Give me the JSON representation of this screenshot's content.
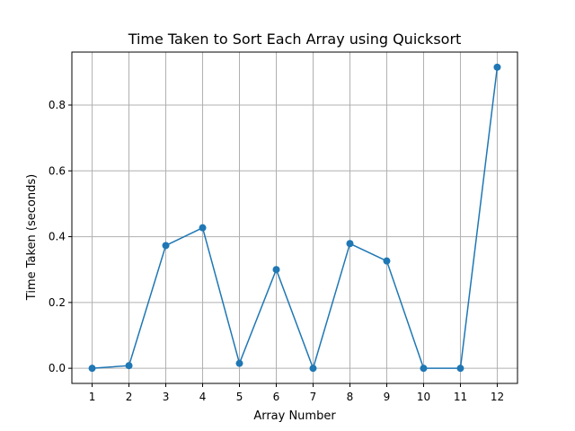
{
  "chart_data": {
    "type": "line",
    "title": "Time Taken to Sort Each Array using Quicksort",
    "xlabel": "Array Number",
    "ylabel": "Time Taken (seconds)",
    "x": [
      1,
      2,
      3,
      4,
      5,
      6,
      7,
      8,
      9,
      10,
      11,
      12
    ],
    "series": [
      {
        "values": [
          0.0,
          0.008,
          0.373,
          0.427,
          0.015,
          0.3,
          0.0,
          0.379,
          0.326,
          0.0,
          0.0,
          0.915
        ],
        "color": "#1f77b4",
        "marker": "circle"
      }
    ],
    "xlim": [
      0.45,
      12.55
    ],
    "ylim": [
      -0.046,
      0.961
    ],
    "xticks": [
      "1",
      "2",
      "3",
      "4",
      "5",
      "6",
      "7",
      "8",
      "9",
      "10",
      "11",
      "12"
    ],
    "yticks": [
      "0.0",
      "0.2",
      "0.4",
      "0.6",
      "0.8"
    ],
    "grid": true
  }
}
